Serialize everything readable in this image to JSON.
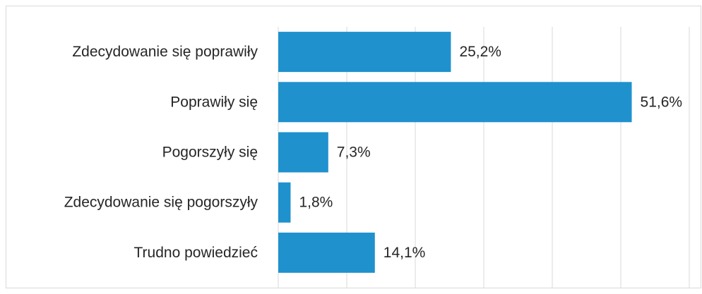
{
  "chart_data": {
    "type": "bar",
    "orientation": "horizontal",
    "categories": [
      "Zdecydowanie się poprawiły",
      "Poprawiły się",
      "Pogorszyły się",
      "Zdecydowanie się pogorszyły",
      "Trudno powiedzieć"
    ],
    "values": [
      25.2,
      51.6,
      7.3,
      1.8,
      14.1
    ],
    "value_labels": [
      "25,2%",
      "51,6%",
      "7,3%",
      "1,8%",
      "14,1%"
    ],
    "color": "#1f91cd",
    "xlim": [
      0,
      60
    ],
    "xticks": [
      0,
      10,
      20,
      30,
      40,
      50,
      60
    ],
    "grid": true
  }
}
